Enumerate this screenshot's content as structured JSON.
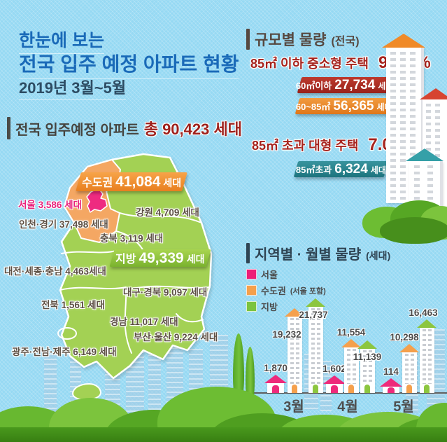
{
  "page": {
    "title_line1": "한눈에 보는",
    "title_line2": "전국 입주 예정 아파트 현황",
    "period": "2019년 3월~5월"
  },
  "total_header": {
    "label": "전국 입주예정 아파트",
    "emphasis": "총 90,423 세대"
  },
  "scale_section": {
    "heading": "규모별 물량",
    "heading_note": "(전국)",
    "small_label": "85㎡ 이하 중소형 주택",
    "small_pct": "93.0 %",
    "banner_small_1_label": "60㎡이하",
    "banner_small_1_value": "27,734",
    "banner_small_1_suffix": "세대",
    "banner_small_2_label": "60~85㎡",
    "banner_small_2_value": "56,365",
    "banner_small_2_suffix": "세대",
    "large_label": "85㎡ 초과 대형 주택",
    "large_pct": "7.0%",
    "banner_large_label": "85㎡초과",
    "banner_large_value": "6,324",
    "banner_large_suffix": "세대"
  },
  "map_section": {
    "sudogwon_label": "수도권",
    "sudogwon_value": "41,084",
    "sudogwon_suffix": "세대",
    "jibang_label": "지방",
    "jibang_value": "49,339",
    "jibang_suffix": "세대",
    "labels": [
      {
        "text": "서울 3,586 세대"
      },
      {
        "text": "인천·경기 37,498 세대"
      },
      {
        "text": "강원 4,709 세대"
      },
      {
        "text": "충북 3,119 세대"
      },
      {
        "text": "대전·세종·충남 4,463세대"
      },
      {
        "text": "대구·경북 9,097 세대"
      },
      {
        "text": "전북 1,561 세대"
      },
      {
        "text": "경남 11,017 세대"
      },
      {
        "text": "부산·울산 9,224 세대"
      },
      {
        "text": "광주·전남·제주 6,149 세대"
      }
    ]
  },
  "monthly_section": {
    "heading": "지역별 · 월별 물량",
    "heading_note": "(세대)",
    "legend": [
      {
        "label": "서울",
        "note": "",
        "color": "#ed1e78"
      },
      {
        "label": "수도권",
        "note": "(서울 포함)",
        "color": "#f5a04c"
      },
      {
        "label": "지방",
        "note": "",
        "color": "#7cc33e"
      }
    ]
  },
  "chart_data": {
    "type": "bar",
    "title": "지역별 · 월별 물량 (세대)",
    "categories": [
      "3월",
      "4월",
      "5월"
    ],
    "series": [
      {
        "name": "서울",
        "color": "#ee2a7b",
        "values": [
          1870,
          1602,
          114
        ],
        "labels": [
          "1,870",
          "1,602",
          "114"
        ]
      },
      {
        "name": "수도권(서울 포함)",
        "color": "#f5a04c",
        "values": [
          19232,
          11554,
          10298
        ],
        "labels": [
          "19,232",
          "11,554",
          "10,298"
        ]
      },
      {
        "name": "지방",
        "color": "#8cc63f",
        "values": [
          21737,
          11139,
          16463
        ],
        "labels": [
          "21,737",
          "11,139",
          "16,463"
        ]
      }
    ],
    "ylim": [
      0,
      22000
    ],
    "grid": false,
    "legend_position": "top-left",
    "note": "bars drawn as apartment-building pictograms"
  },
  "colors": {
    "sky": "#96d9f3",
    "title_blue": "#1a6ab8",
    "deep_red": "#a6231d",
    "map_green": "#a3d154",
    "map_capital_orange": "#f4a763",
    "seoul_pink": "#ee2a80",
    "banner_red": "#ab2d22",
    "banner_orange": "#e88628",
    "banner_teal": "#2a848e"
  }
}
